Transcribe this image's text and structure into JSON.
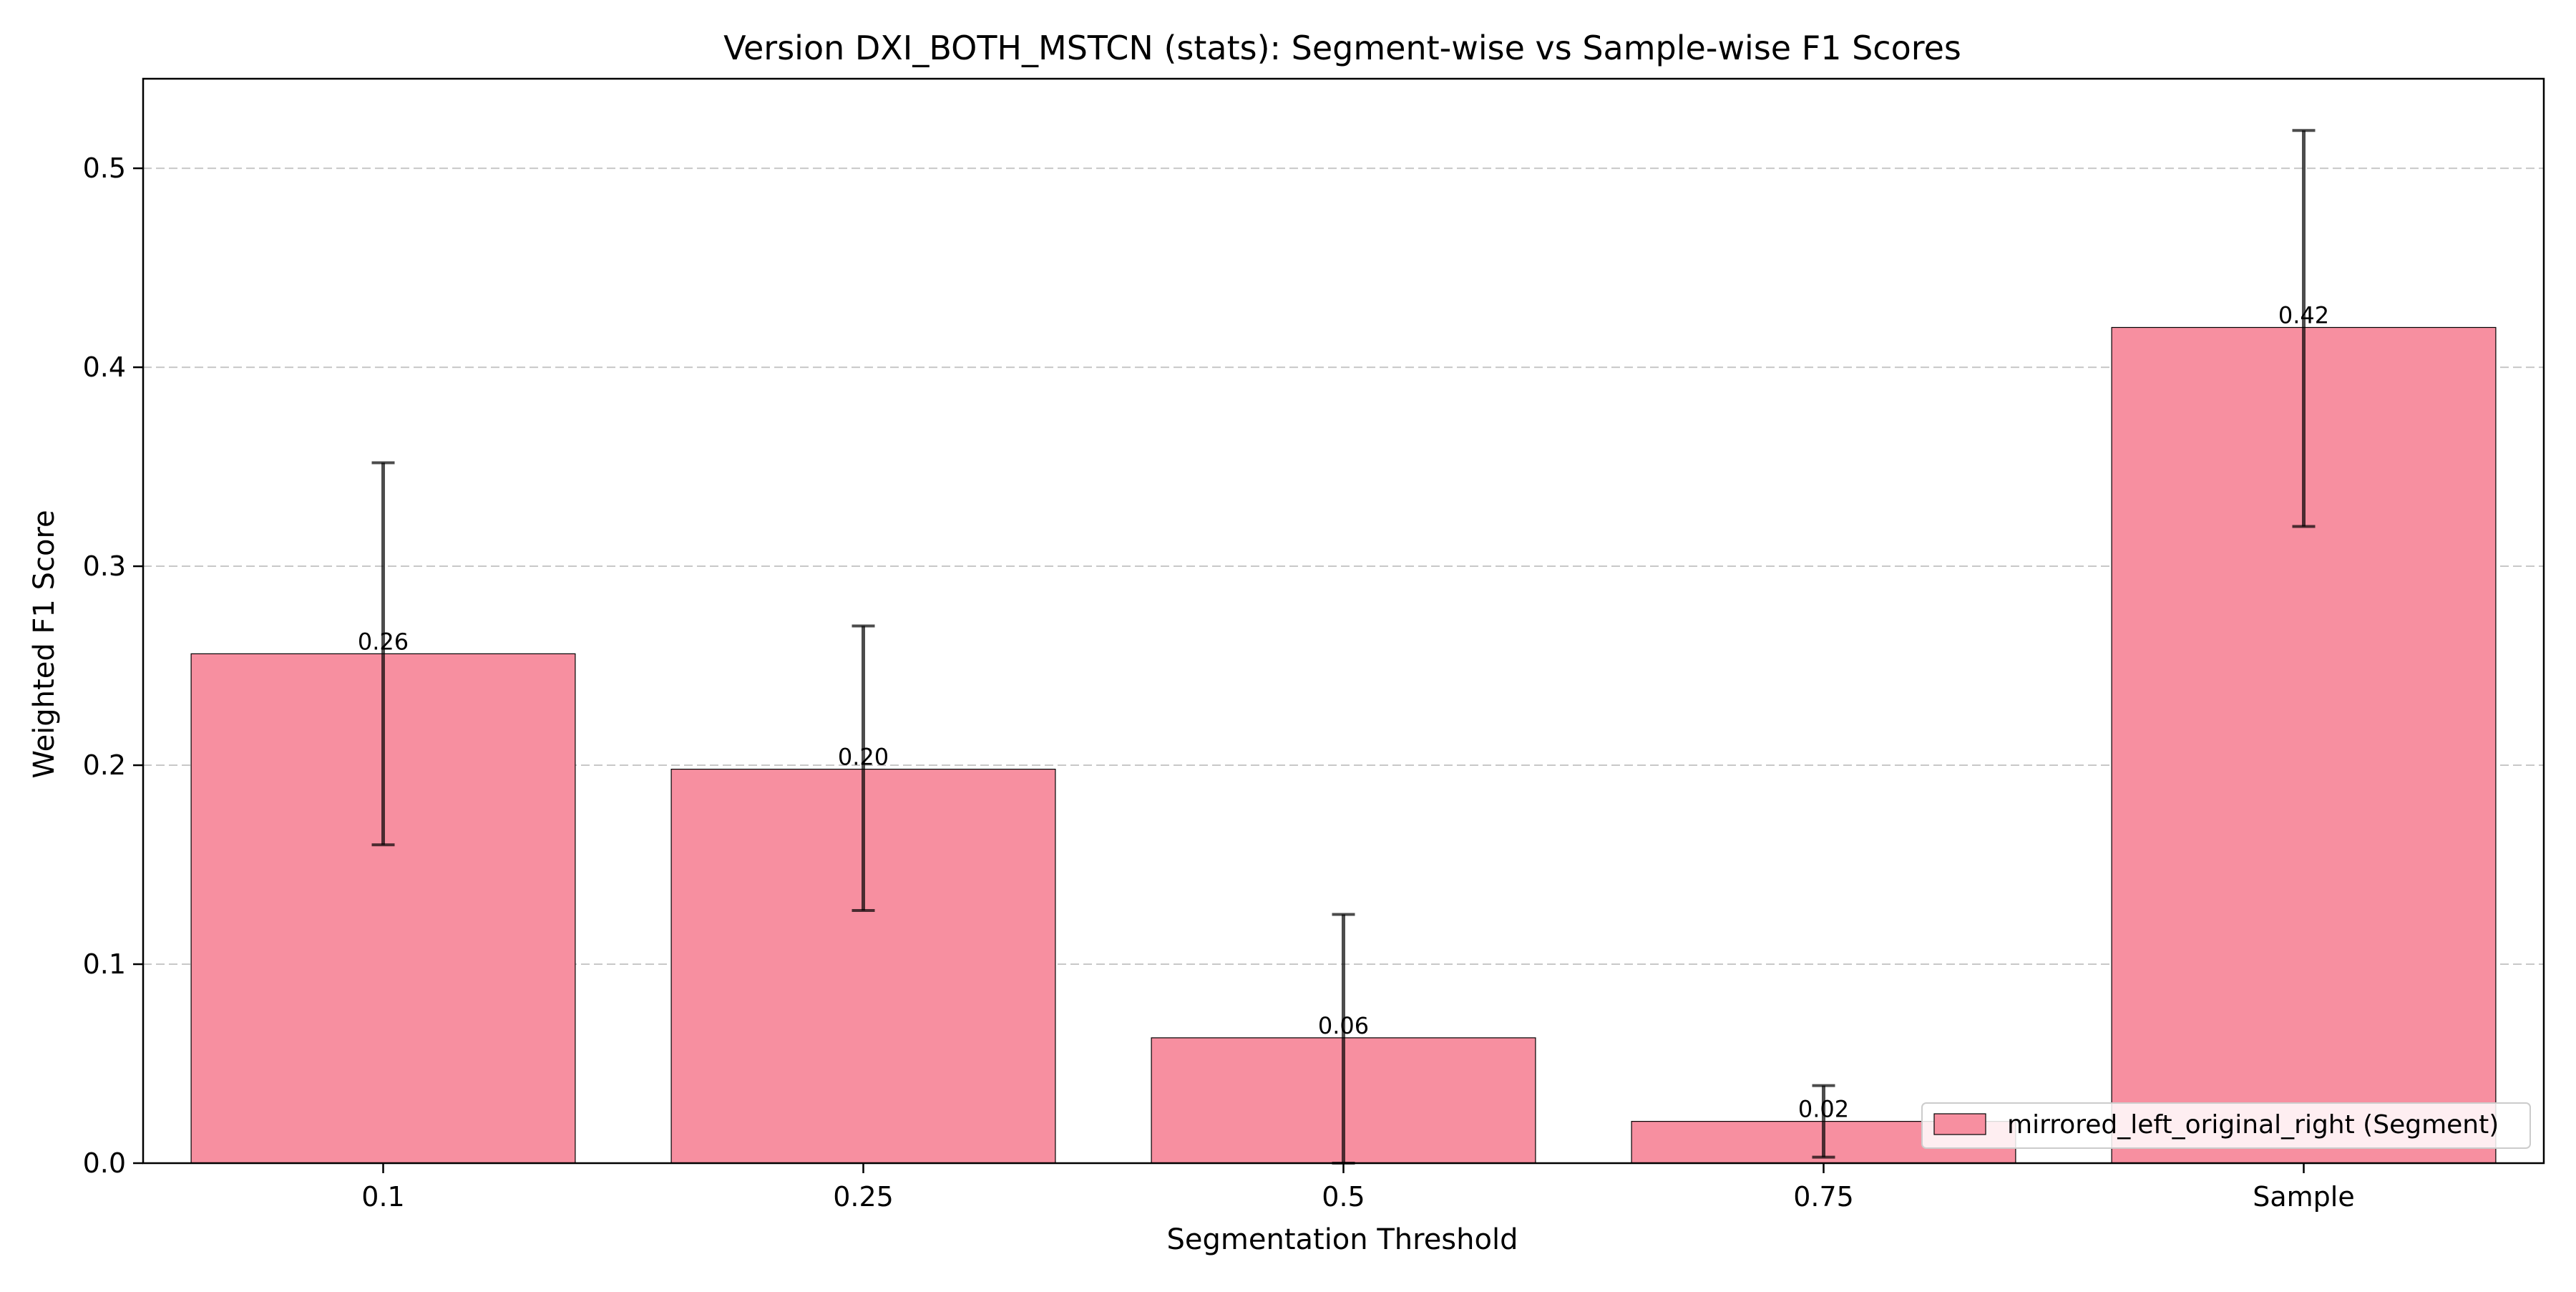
{
  "chart_data": {
    "type": "bar",
    "title": "Version DXI_BOTH_MSTCN (stats): Segment-wise vs Sample-wise F1 Scores",
    "xlabel": "Segmentation Threshold",
    "ylabel": "Weighted F1 Score",
    "categories": [
      "0.1",
      "0.25",
      "0.5",
      "0.75",
      "Sample"
    ],
    "ylim": [
      0,
      0.545
    ],
    "yticks": [
      0.0,
      0.1,
      0.2,
      0.3,
      0.4,
      0.5
    ],
    "ytick_labels": [
      "0.0",
      "0.1",
      "0.2",
      "0.3",
      "0.4",
      "0.5"
    ],
    "grid": "y-dashed",
    "legend_position": "lower-right",
    "series": [
      {
        "name": "mirrored_left_original_right (Segment)",
        "color": "#f78fa0",
        "values": [
          0.256,
          0.198,
          0.063,
          0.021,
          0.42
        ],
        "error_low": [
          0.16,
          0.127,
          0.0,
          0.003,
          0.32
        ],
        "error_high": [
          0.352,
          0.27,
          0.125,
          0.039,
          0.519
        ],
        "value_labels": [
          "0.26",
          "0.20",
          "0.06",
          "0.02",
          "0.42"
        ]
      }
    ]
  }
}
